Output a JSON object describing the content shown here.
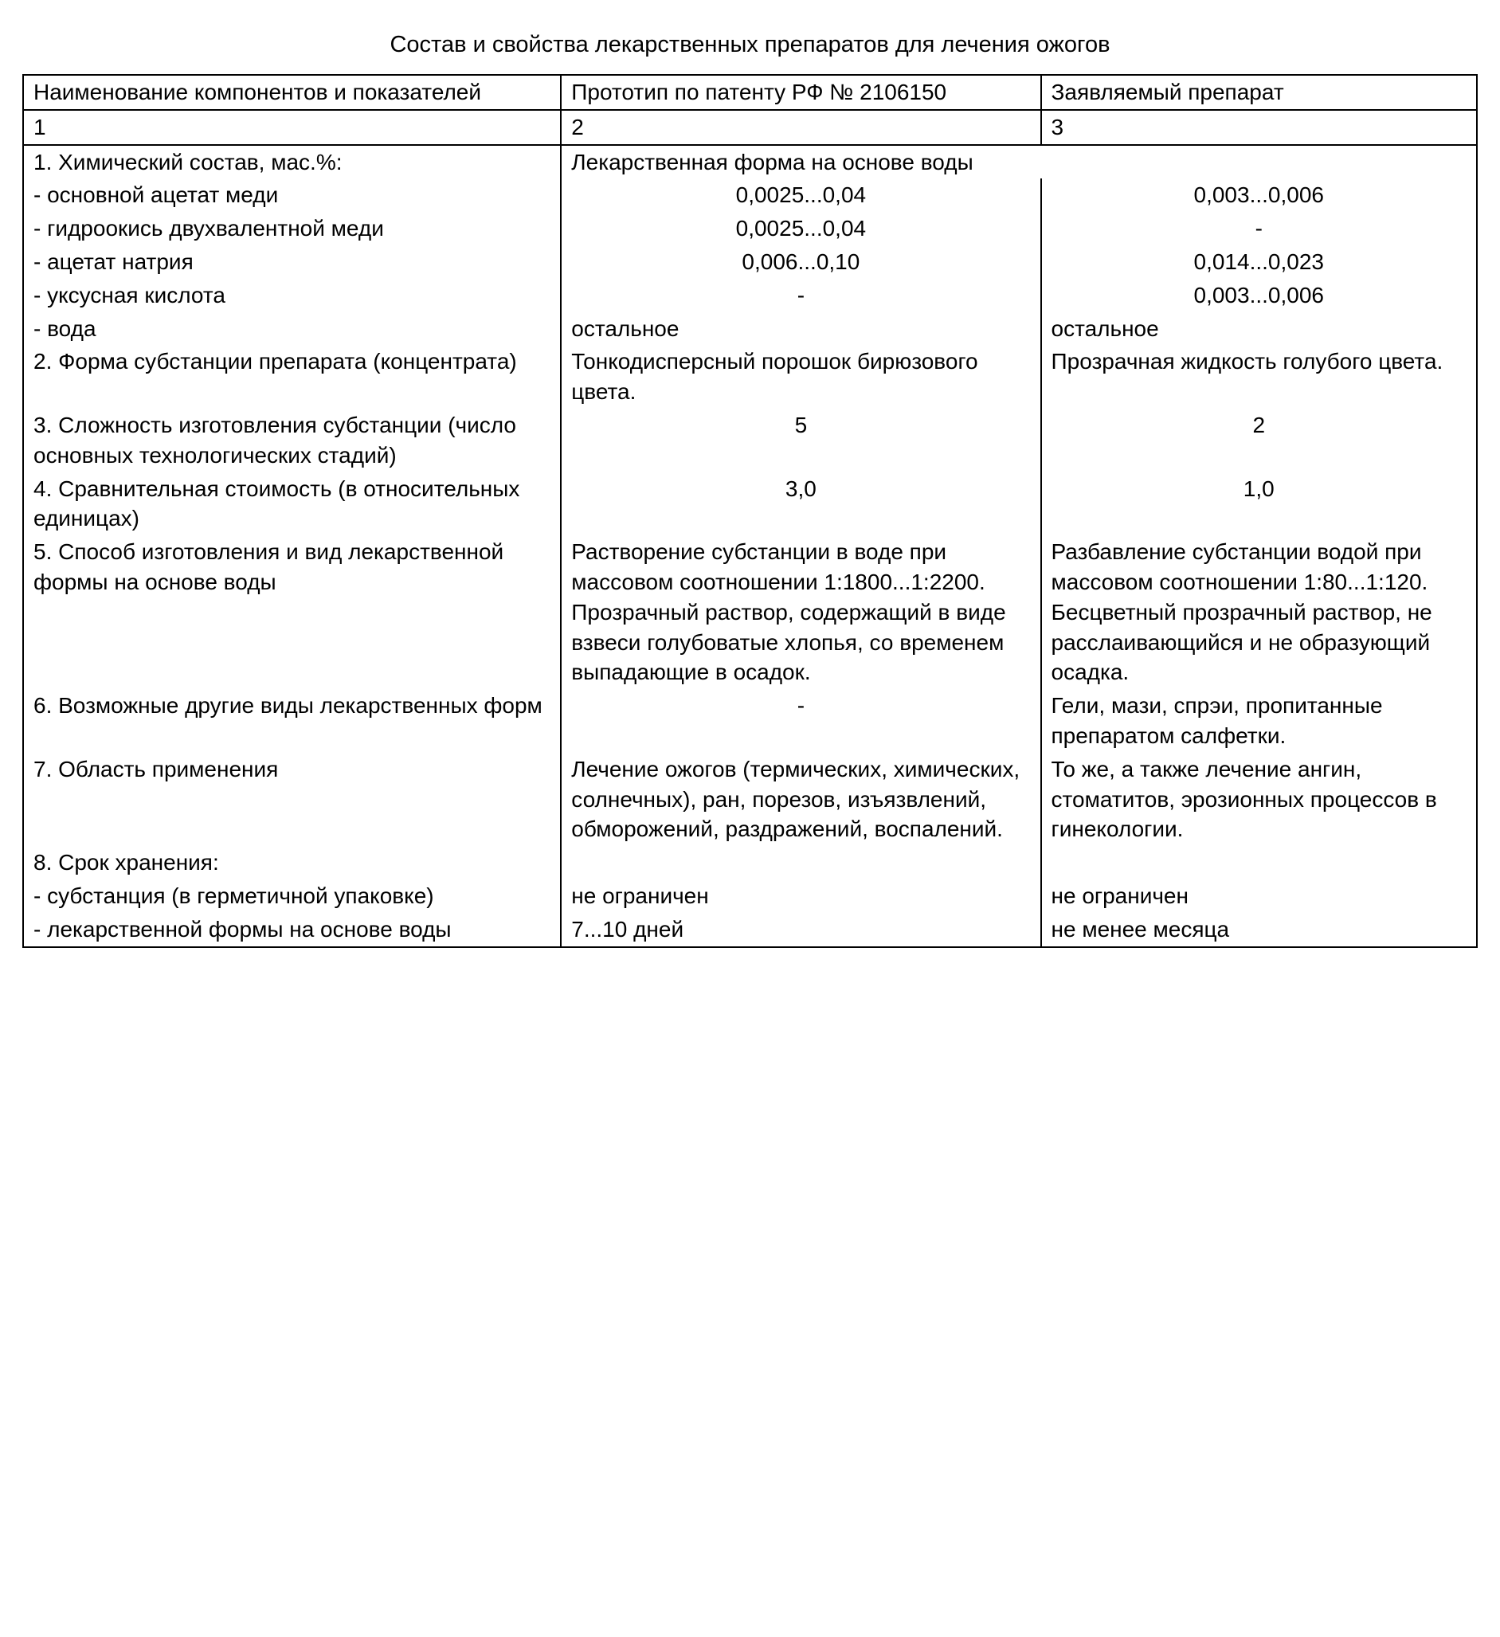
{
  "title": "Состав и свойства лекарственных препаратов для лечения ожогов",
  "headers": {
    "c1": "Наименование компонентов и показателей",
    "c2": "Прототип по патенту РФ № 2106150",
    "c3": "Заявляемый препарат"
  },
  "numrow": {
    "c1": "1",
    "c2": "2",
    "c3": "3"
  },
  "rows": [
    {
      "c1": "1. Химический состав, мас.%:",
      "c2": "Лекарственная форма на основе воды",
      "c3": "",
      "merge23": true
    },
    {
      "c1": "- основной ацетат меди",
      "c2": "0,0025...0,04",
      "c3": "0,003...0,006",
      "c2c": true,
      "c3c": true
    },
    {
      "c1": "- гидроокись двухвалентной меди",
      "c2": "0,0025...0,04",
      "c3": "-",
      "c2c": true,
      "c3c": true
    },
    {
      "c1": "- ацетат натрия",
      "c2": "0,006...0,10",
      "c3": "0,014...0,023",
      "c2c": true,
      "c3c": true
    },
    {
      "c1": "- уксусная кислота",
      "c2": "-",
      "c3": "0,003...0,006",
      "c2c": true,
      "c3c": true
    },
    {
      "c1": "- вода",
      "c2": "остальное",
      "c3": "остальное"
    },
    {
      "c1": "2. Форма субстанции препарата (концентрата)",
      "c2": "Тонкодисперсный порошок бирюзового цвета.",
      "c3": "Прозрачная жидкость голубого цвета."
    },
    {
      "c1": "3. Сложность изготовления субстанции (число основных технологических стадий)",
      "c2": "5",
      "c3": "2",
      "c2c": true,
      "c3c": true
    },
    {
      "c1": "4. Сравнительная стоимость (в относительных единицах)",
      "c2": "3,0",
      "c3": "1,0",
      "c2c": true,
      "c3c": true
    },
    {
      "c1": "5. Способ изготовления и вид лекарственной формы на основе воды",
      "c2": "Растворение субстанции в воде при массовом соотношении 1:1800...1:2200. Прозрачный раствор, содержащий в виде взвеси голубоватые хлопья, со временем выпадающие в осадок.",
      "c3": "Разбавление субстанции водой при массовом соотношении 1:80...1:120. Бесцветный прозрачный раствор, не расслаивающийся и не образующий осадка."
    },
    {
      "c1": "6. Возможные другие виды лекарственных форм",
      "c2": "-",
      "c3": "Гели, мази, спрэи, пропитанные препаратом салфетки.",
      "c2c": true
    },
    {
      "c1": "7. Область применения",
      "c2": "Лечение ожогов (термических, химических, солнечных), ран, порезов, изъязвлений, обморожений, раздражений, воспалений.",
      "c3": "То же, а также лечение ангин, стоматитов, эрозионных процессов в гинекологии."
    },
    {
      "c1": "8. Срок хранения:",
      "c2": "",
      "c3": ""
    },
    {
      "c1": "- субстанция (в герметичной упаковке)",
      "c2": "не ограничен",
      "c3": "не ограничен"
    },
    {
      "c1": "- лекарственной формы на основе воды",
      "c2": "7...10 дней",
      "c3": "не менее месяца"
    }
  ]
}
